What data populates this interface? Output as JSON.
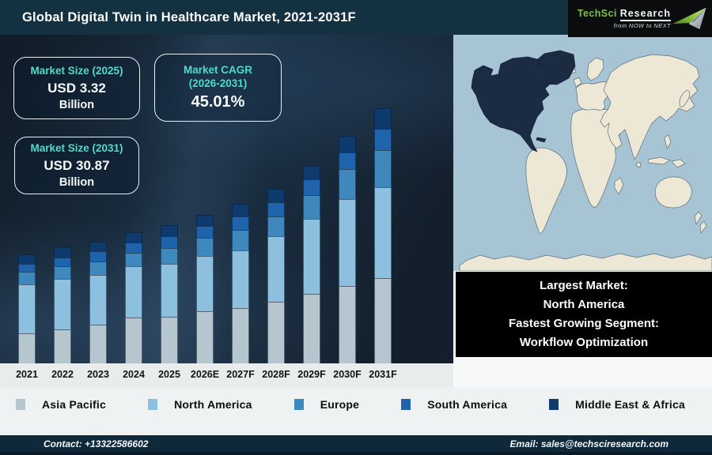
{
  "header": {
    "title": "Global Digital Twin in Healthcare Market, 2021-2031F",
    "logo": {
      "brand_primary": "TechSci",
      "brand_secondary": "Research",
      "tagline": "from NOW to NEXT"
    }
  },
  "info_boxes": [
    {
      "title": "Market Size (2025)",
      "value": "USD 3.32",
      "unit": "Billion"
    },
    {
      "title": "Market CAGR",
      "title_line2": "(2026-2031)",
      "value": "45.01%"
    },
    {
      "title": "Market Size (2031)",
      "value": "USD 30.87",
      "unit": "Billion"
    }
  ],
  "chart_data": {
    "type": "bar",
    "stacked": true,
    "title": "Global Digital Twin in Healthcare Market, 2021-2031F",
    "categories": [
      "2021",
      "2022",
      "2023",
      "2024",
      "2025",
      "2026E",
      "2027F",
      "2028F",
      "2029F",
      "2030F",
      "2031F"
    ],
    "series": [
      {
        "name": "Asia Pacific",
        "color": "#b5c6ce",
        "values": [
          38,
          43,
          49,
          58,
          59,
          66,
          70,
          78,
          88,
          98,
          108
        ]
      },
      {
        "name": "North America",
        "color": "#8cc0de",
        "values": [
          62,
          64,
          63,
          65,
          67,
          70,
          73,
          83,
          95,
          110,
          115
        ]
      },
      {
        "name": "Europe",
        "color": "#3f88bd",
        "values": [
          16,
          16,
          17,
          17,
          20,
          23,
          26,
          25,
          30,
          38,
          47
        ]
      },
      {
        "name": "South America",
        "color": "#1e63ab",
        "values": [
          10,
          11,
          13,
          13,
          15,
          15,
          17,
          18,
          20,
          21,
          27
        ]
      },
      {
        "name": "Middle East & Africa",
        "color": "#0e3a6e",
        "values": [
          12,
          13,
          12,
          13,
          14,
          14,
          16,
          17,
          17,
          21,
          26
        ]
      }
    ],
    "value_units": "illustrative segment heights in px (no y-axis or data labels shown in figure)",
    "y_axis_shown": false,
    "grid": false,
    "legend_position": "bottom",
    "known_values": {
      "market_size_2025_usd_billion": 3.32,
      "market_size_2031_usd_billion": 30.87,
      "cagr_2026_2031_percent": 45.01
    }
  },
  "map": {
    "highlighted_region": "North America",
    "ocean_color": "#a7c4d5",
    "land_color": "#ece8d5",
    "highlight_color": "#1b2c42"
  },
  "callout": {
    "lines": [
      "Largest Market:",
      "North America",
      "Fastest Growing Segment:",
      "Workflow Optimization"
    ]
  },
  "footer": {
    "contact": "Contact: +13322586602",
    "email": "Email: sales@techsciresearch.com"
  },
  "colors": {
    "header_bg": "#133140",
    "accent_teal": "#4cdcc8",
    "chart_bg": "#15212f",
    "footer_bg": "#10293a",
    "logo_green": "#7dc242"
  }
}
